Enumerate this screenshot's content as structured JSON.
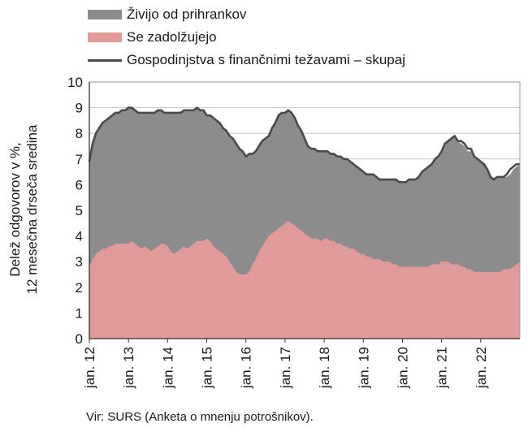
{
  "legend": {
    "items": [
      {
        "label": "Živijo od prihrankov",
        "color": "#8c8c8c",
        "kind": "area"
      },
      {
        "label": "Se zadolžujejo",
        "color": "#e09a9a",
        "kind": "area"
      },
      {
        "label": "Gospodinjstva s finančnimi težavami – skupaj",
        "color": "#4a4a4a",
        "kind": "line"
      }
    ]
  },
  "source": "Vir: SURS (Anketa o mnenju potrošnikov).",
  "chart_data": {
    "type": "area",
    "ylabel_line1": "Delež odgovorov v %,",
    "ylabel_line2": "12 mesečna drseča sredina",
    "ylim": [
      0,
      10
    ],
    "yticks": [
      0,
      1,
      2,
      3,
      4,
      5,
      6,
      7,
      8,
      9,
      10
    ],
    "grid": true,
    "x_start": "2012-01",
    "x_end": "2022-10",
    "xticks": [
      {
        "label": "jan. 12",
        "month": 0
      },
      {
        "label": "jan. 13",
        "month": 12
      },
      {
        "label": "jan. 14",
        "month": 24
      },
      {
        "label": "jan. 15",
        "month": 36
      },
      {
        "label": "jan. 16",
        "month": 48
      },
      {
        "label": "jan. 17",
        "month": 60
      },
      {
        "label": "jan. 18",
        "month": 72
      },
      {
        "label": "jan. 19",
        "month": 84
      },
      {
        "label": "jan. 20",
        "month": 96
      },
      {
        "label": "jan. 21",
        "month": 108
      },
      {
        "label": "jan. 22",
        "month": 120
      }
    ],
    "series": [
      {
        "name": "Se zadolžujejo",
        "color": "#e09a9a",
        "values": [
          2.8,
          3.1,
          3.3,
          3.4,
          3.5,
          3.5,
          3.6,
          3.6,
          3.7,
          3.7,
          3.7,
          3.7,
          3.7,
          3.8,
          3.7,
          3.6,
          3.5,
          3.6,
          3.5,
          3.4,
          3.5,
          3.6,
          3.7,
          3.7,
          3.6,
          3.4,
          3.3,
          3.4,
          3.5,
          3.6,
          3.5,
          3.6,
          3.7,
          3.8,
          3.8,
          3.8,
          3.9,
          3.8,
          3.6,
          3.5,
          3.4,
          3.3,
          3.2,
          3.0,
          2.8,
          2.6,
          2.5,
          2.5,
          2.5,
          2.6,
          2.9,
          3.1,
          3.4,
          3.6,
          3.8,
          4.0,
          4.1,
          4.2,
          4.3,
          4.4,
          4.5,
          4.6,
          4.5,
          4.4,
          4.3,
          4.2,
          4.1,
          4.0,
          3.9,
          3.9,
          3.9,
          3.8,
          3.9,
          3.9,
          3.8,
          3.8,
          3.7,
          3.7,
          3.6,
          3.6,
          3.5,
          3.5,
          3.4,
          3.3,
          3.3,
          3.2,
          3.2,
          3.1,
          3.1,
          3.1,
          3.0,
          3.0,
          3.0,
          2.9,
          2.9,
          2.8,
          2.8,
          2.8,
          2.8,
          2.8,
          2.8,
          2.8,
          2.8,
          2.8,
          2.8,
          2.9,
          2.9,
          2.9,
          3.0,
          3.0,
          3.0,
          2.9,
          2.9,
          2.9,
          2.8,
          2.8,
          2.7,
          2.7,
          2.6,
          2.6,
          2.6,
          2.6,
          2.6,
          2.6,
          2.6,
          2.6,
          2.6,
          2.7,
          2.7,
          2.7,
          2.8,
          2.9,
          3.0
        ]
      },
      {
        "name": "Živijo od prihrankov",
        "color": "#8c8c8c",
        "values": [
          4.1,
          4.5,
          4.7,
          4.8,
          4.9,
          5.0,
          5.0,
          5.1,
          5.1,
          5.1,
          5.2,
          5.2,
          5.3,
          5.2,
          5.2,
          5.2,
          5.3,
          5.2,
          5.3,
          5.4,
          5.3,
          5.3,
          5.2,
          5.1,
          5.2,
          5.4,
          5.5,
          5.4,
          5.3,
          5.3,
          5.4,
          5.3,
          5.2,
          5.2,
          5.1,
          5.1,
          4.8,
          4.9,
          5.0,
          5.0,
          5.0,
          4.9,
          4.9,
          4.9,
          5.0,
          5.0,
          4.9,
          4.8,
          4.6,
          4.6,
          4.3,
          4.2,
          4.1,
          4.1,
          4.0,
          3.9,
          4.1,
          4.2,
          4.4,
          4.4,
          4.3,
          4.3,
          4.3,
          4.2,
          4.0,
          3.9,
          3.7,
          3.5,
          3.5,
          3.5,
          3.4,
          3.5,
          3.4,
          3.4,
          3.4,
          3.4,
          3.4,
          3.4,
          3.4,
          3.4,
          3.4,
          3.3,
          3.3,
          3.3,
          3.2,
          3.2,
          3.2,
          3.3,
          3.2,
          3.1,
          3.2,
          3.2,
          3.2,
          3.3,
          3.3,
          3.3,
          3.3,
          3.3,
          3.4,
          3.4,
          3.4,
          3.5,
          3.7,
          3.8,
          3.9,
          3.9,
          4.1,
          4.2,
          4.3,
          4.6,
          4.7,
          4.9,
          5.0,
          4.8,
          4.8,
          4.7,
          4.6,
          4.6,
          4.5,
          4.4,
          4.3,
          4.2,
          4.0,
          3.7,
          3.6,
          3.7,
          3.7,
          3.6,
          3.6,
          3.7,
          3.8,
          3.8,
          3.8
        ]
      },
      {
        "name": "Gospodinjstva s finančnimi težavami – skupaj",
        "color": "#4a4a4a",
        "values": [
          6.9,
          7.6,
          8.0,
          8.2,
          8.4,
          8.5,
          8.6,
          8.7,
          8.8,
          8.8,
          8.9,
          8.9,
          9.0,
          9.0,
          8.9,
          8.8,
          8.8,
          8.8,
          8.8,
          8.8,
          8.8,
          8.9,
          8.9,
          8.8,
          8.8,
          8.8,
          8.8,
          8.8,
          8.8,
          8.9,
          8.9,
          8.9,
          8.9,
          9.0,
          8.9,
          8.9,
          8.7,
          8.7,
          8.6,
          8.5,
          8.4,
          8.2,
          8.1,
          7.9,
          7.8,
          7.6,
          7.4,
          7.3,
          7.1,
          7.2,
          7.2,
          7.3,
          7.5,
          7.7,
          7.8,
          7.9,
          8.2,
          8.4,
          8.7,
          8.8,
          8.8,
          8.9,
          8.8,
          8.6,
          8.3,
          8.1,
          7.8,
          7.5,
          7.4,
          7.4,
          7.3,
          7.3,
          7.3,
          7.3,
          7.2,
          7.2,
          7.1,
          7.1,
          7.0,
          7.0,
          6.9,
          6.8,
          6.7,
          6.6,
          6.5,
          6.4,
          6.4,
          6.4,
          6.3,
          6.2,
          6.2,
          6.2,
          6.2,
          6.2,
          6.2,
          6.1,
          6.1,
          6.1,
          6.2,
          6.2,
          6.2,
          6.3,
          6.5,
          6.6,
          6.7,
          6.8,
          7.0,
          7.1,
          7.3,
          7.6,
          7.7,
          7.8,
          7.9,
          7.7,
          7.7,
          7.6,
          7.4,
          7.4,
          7.1,
          7.0,
          6.9,
          6.8,
          6.6,
          6.3,
          6.2,
          6.3,
          6.3,
          6.3,
          6.4,
          6.6,
          6.7,
          6.8,
          6.8
        ]
      }
    ]
  }
}
